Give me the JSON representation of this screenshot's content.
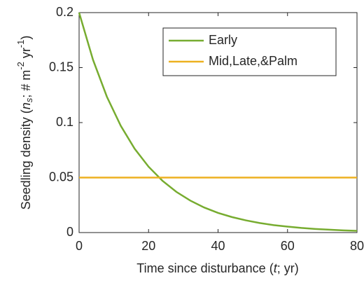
{
  "chart_data": {
    "type": "line",
    "xlabel": [
      "Time since disturbance (",
      "t",
      "; yr)"
    ],
    "ylabel": [
      "Seedling density (",
      "n",
      "s",
      "; # m",
      "-2",
      " yr",
      "-1",
      ")"
    ],
    "x": [
      0,
      4,
      8,
      12,
      16,
      20,
      24,
      28,
      32,
      36,
      40,
      44,
      48,
      52,
      56,
      60,
      64,
      68,
      72,
      76,
      80
    ],
    "series": [
      {
        "name": "Early",
        "color": "#77ac30",
        "values": [
          0.2,
          0.1571,
          0.1235,
          0.097,
          0.0762,
          0.0599,
          0.0471,
          0.037,
          0.0291,
          0.0228,
          0.0179,
          0.0141,
          0.0111,
          0.0087,
          0.0068,
          0.0054,
          0.0042,
          0.0033,
          0.0026,
          0.002,
          0.0016
        ]
      },
      {
        "name": "Mid,Late,&Palm",
        "color": "#edb120",
        "values": [
          0.05,
          0.05,
          0.05,
          0.05,
          0.05,
          0.05,
          0.05,
          0.05,
          0.05,
          0.05,
          0.05,
          0.05,
          0.05,
          0.05,
          0.05,
          0.05,
          0.05,
          0.05,
          0.05,
          0.05,
          0.05
        ]
      }
    ],
    "xlim": [
      0,
      80
    ],
    "xticks": [
      0,
      20,
      40,
      60,
      80
    ],
    "ylim": [
      0,
      0.2
    ],
    "yticks": [
      0,
      0.05,
      0.1,
      0.15,
      0.2
    ],
    "grid": false,
    "legend": "top-right"
  }
}
